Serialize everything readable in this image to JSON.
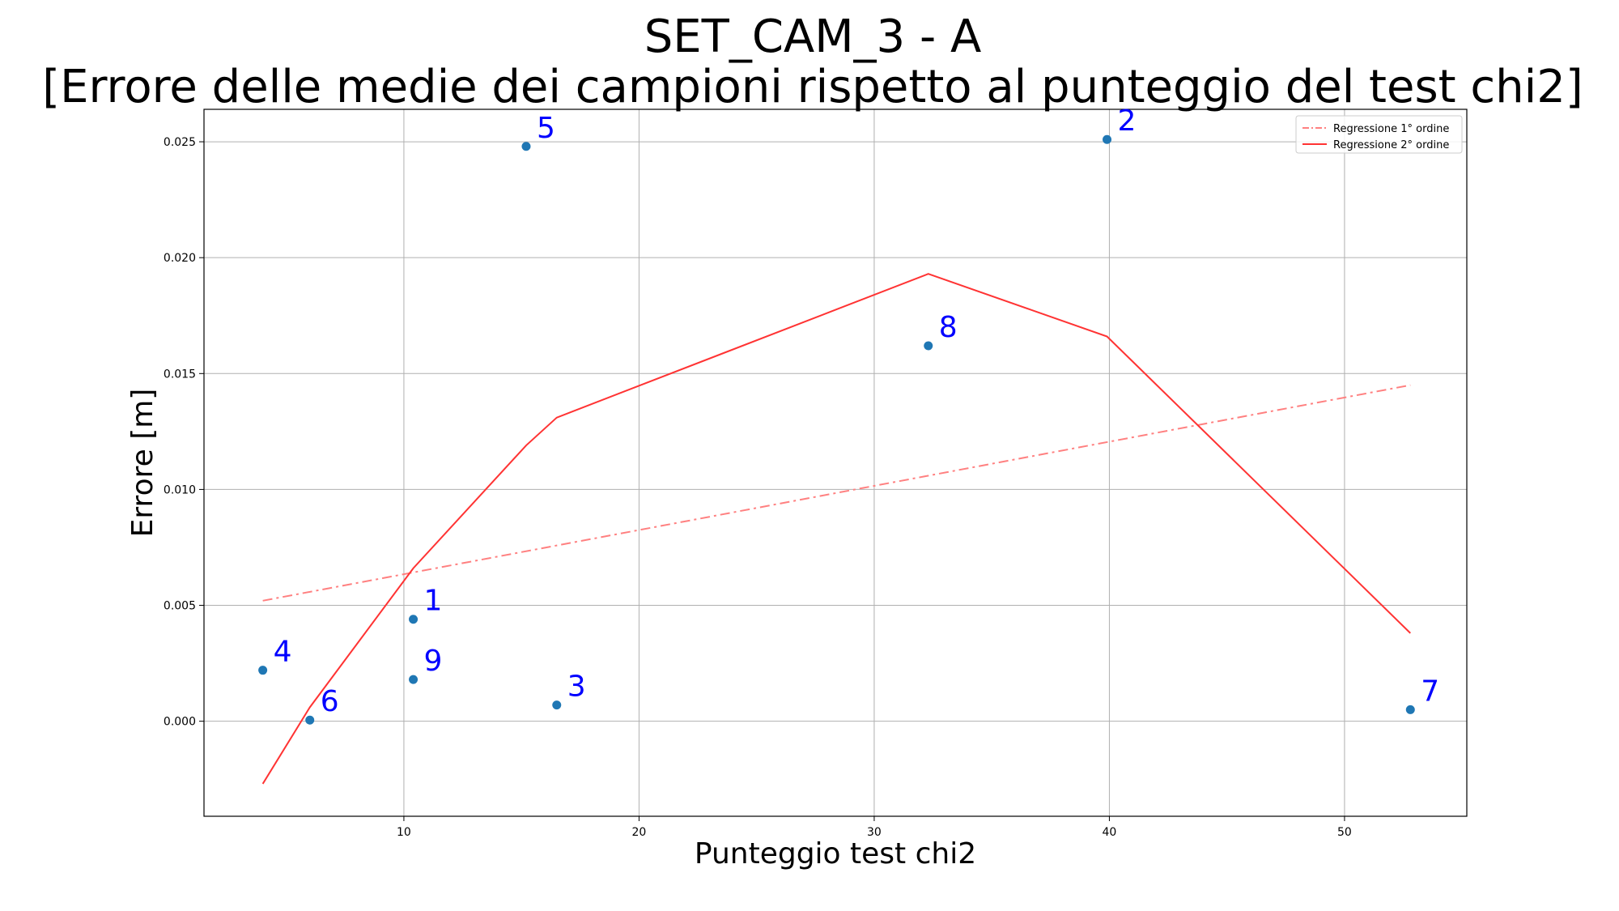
{
  "chart_data": {
    "type": "scatter",
    "title": [
      "SET_CAM_3 - A",
      "[Errore delle medie dei campioni rispetto al punteggio del test chi2]"
    ],
    "xlabel": "Punteggio test chi2",
    "ylabel": "Errore [m]",
    "xlim": [
      1.5,
      55.2
    ],
    "ylim": [
      -0.0041,
      0.0264
    ],
    "xticks": [
      10,
      20,
      30,
      40,
      50
    ],
    "xtick_labels": [
      "10",
      "20",
      "30",
      "40",
      "50"
    ],
    "yticks": [
      0.0,
      0.005,
      0.01,
      0.015,
      0.02,
      0.025
    ],
    "ytick_labels": [
      "0.000",
      "0.005",
      "0.010",
      "0.015",
      "0.020",
      "0.025"
    ],
    "grid": true,
    "legend_position": "top-right",
    "points": [
      {
        "label": "1",
        "x": 10.4,
        "y": 0.0044
      },
      {
        "label": "2",
        "x": 39.9,
        "y": 0.0251
      },
      {
        "label": "3",
        "x": 16.5,
        "y": 0.0007
      },
      {
        "label": "4",
        "x": 4.0,
        "y": 0.0022
      },
      {
        "label": "5",
        "x": 15.2,
        "y": 0.0248
      },
      {
        "label": "6",
        "x": 6.0,
        "y": 5e-05
      },
      {
        "label": "7",
        "x": 52.8,
        "y": 0.0005
      },
      {
        "label": "8",
        "x": 32.3,
        "y": 0.0162
      },
      {
        "label": "9",
        "x": 10.4,
        "y": 0.0018
      }
    ],
    "series": [
      {
        "name": "Regressione 1° ordine",
        "style": "dashdot",
        "color": "#ff8080",
        "x": [
          4.0,
          52.8
        ],
        "y": [
          0.0052,
          0.0145
        ]
      },
      {
        "name": "Regressione 2° ordine",
        "style": "solid",
        "color": "#ff3333",
        "x": [
          4.0,
          6.0,
          10.4,
          15.2,
          16.5,
          32.3,
          39.9,
          52.8
        ],
        "y": [
          -0.0027,
          0.0006,
          0.0066,
          0.0119,
          0.0131,
          0.0193,
          0.0166,
          0.0038
        ]
      }
    ],
    "point_color": "#1f77b4",
    "label_color": "#0000ff"
  }
}
